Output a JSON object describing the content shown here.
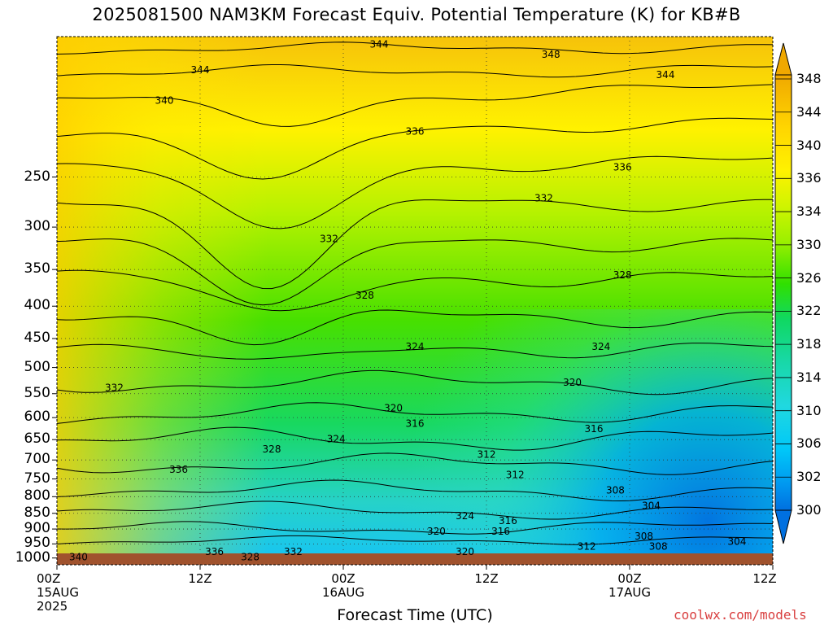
{
  "title": "2025081500 NAM3KM Forecast Equiv. Potential Temperature (K) for KB#B",
  "credit": "coolwx.com/models",
  "chart_data": {
    "type": "heatmap",
    "title": "2025081500 NAM3KM Forecast Equiv. Potential Temperature (K) for KB#B",
    "xlabel": "Forecast Time (UTC)",
    "ylabel": "",
    "x_range_hours": [
      0,
      60
    ],
    "y_range_hpa": [
      1025,
      150
    ],
    "y_ticks": [
      "250",
      "300",
      "350",
      "400",
      "450",
      "500",
      "550",
      "600",
      "650",
      "700",
      "750",
      "800",
      "850",
      "900",
      "950",
      "1000"
    ],
    "x_ticks": [
      {
        "lines": [
          "00Z",
          "15AUG",
          "2025"
        ]
      },
      {
        "lines": [
          "12Z"
        ]
      },
      {
        "lines": [
          "00Z",
          "16AUG"
        ]
      },
      {
        "lines": [
          "12Z"
        ]
      },
      {
        "lines": [
          "00Z",
          "17AUG"
        ]
      },
      {
        "lines": [
          "12Z"
        ]
      }
    ],
    "colorbar_levels": [
      "348",
      "344",
      "340",
      "336",
      "334",
      "330",
      "326",
      "322",
      "318",
      "314",
      "310",
      "306",
      "302",
      "300"
    ],
    "contour_labels": [
      "344",
      "348",
      "344",
      "344",
      "340",
      "336",
      "336",
      "332",
      "332",
      "328",
      "328",
      "324",
      "324",
      "332",
      "320",
      "320",
      "316",
      "316",
      "312",
      "324",
      "328",
      "312",
      "308",
      "304",
      "324",
      "316",
      "320",
      "316",
      "308",
      "308",
      "312",
      "320",
      "304",
      "336",
      "340",
      "336",
      "328",
      "332"
    ],
    "grid": true,
    "colors": {
      "warm": "#f5c000",
      "cold": "#0080e8",
      "ground": "#a0522d"
    }
  }
}
